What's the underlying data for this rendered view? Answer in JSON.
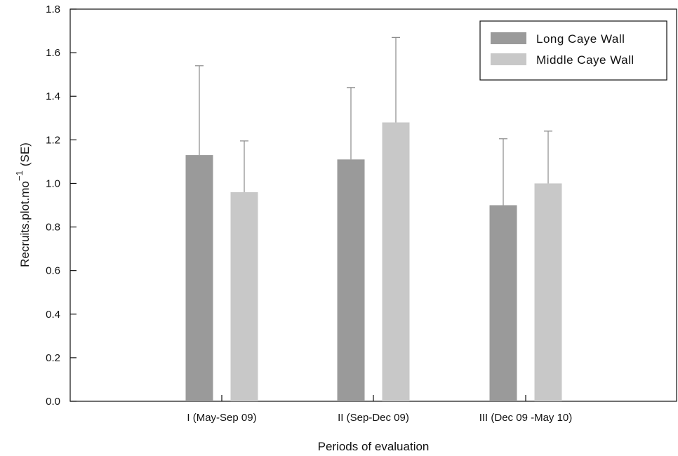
{
  "chart_data": {
    "type": "bar",
    "categories": [
      "I (May-Sep 09)",
      "II (Sep-Dec 09)",
      "III (Dec 09 -May 10)"
    ],
    "series": [
      {
        "name": "Long Caye Wall",
        "values": [
          1.13,
          1.11,
          0.9
        ],
        "errors": [
          0.41,
          0.33,
          0.305
        ],
        "color": "#9a9a9a"
      },
      {
        "name": "Middle Caye Wall",
        "values": [
          0.96,
          1.28,
          1.0
        ],
        "errors": [
          0.235,
          0.39,
          0.24
        ],
        "color": "#c8c8c8"
      }
    ],
    "xlabel": "Periods of evaluation",
    "ylabel": "Recruits.plot.mo",
    "ylabel_superscript": "−1",
    "ylabel_suffix": "(SE)",
    "ylim": [
      0,
      1.8
    ],
    "yticks": [
      "0.0",
      "0.2",
      "0.4",
      "0.6",
      "0.8",
      "1.0",
      "1.2",
      "1.4",
      "1.6",
      "1.8"
    ],
    "grid": false,
    "legend_position": "top-right"
  }
}
